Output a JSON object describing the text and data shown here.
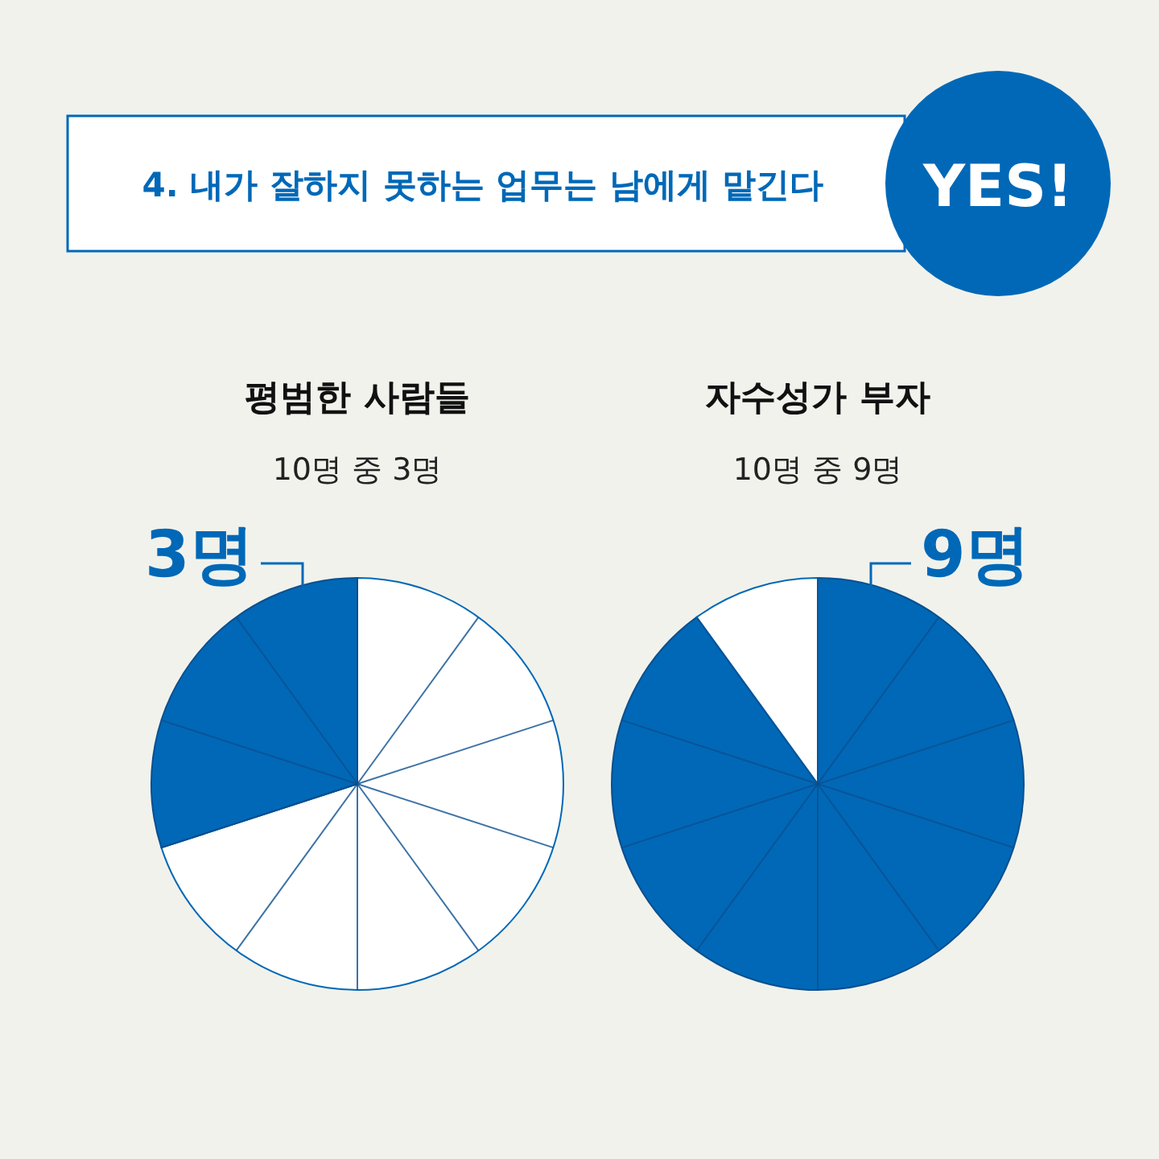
{
  "chart_data": [
    {
      "type": "other",
      "title": "4. 내가 잘하지 못하는 업무는 남에게 맡긴다",
      "annotations": [
        "YES!"
      ]
    },
    {
      "type": "pie",
      "title": "평범한 사람들",
      "subtitle": "10명 중 3명",
      "annotations": [
        "3명"
      ],
      "categories": [
        null,
        null
      ],
      "values": [
        70,
        30
      ],
      "colors": [
        "#ffffff",
        "#0068b7"
      ]
    },
    {
      "type": "pie",
      "title": "자수성가 부자",
      "subtitle": "10명 중 9명",
      "annotations": [
        "9명"
      ],
      "categories": [
        null,
        null
      ],
      "values": [
        90,
        10
      ],
      "colors": [
        "#0068b7",
        "#ffffff"
      ]
    }
  ]
}
